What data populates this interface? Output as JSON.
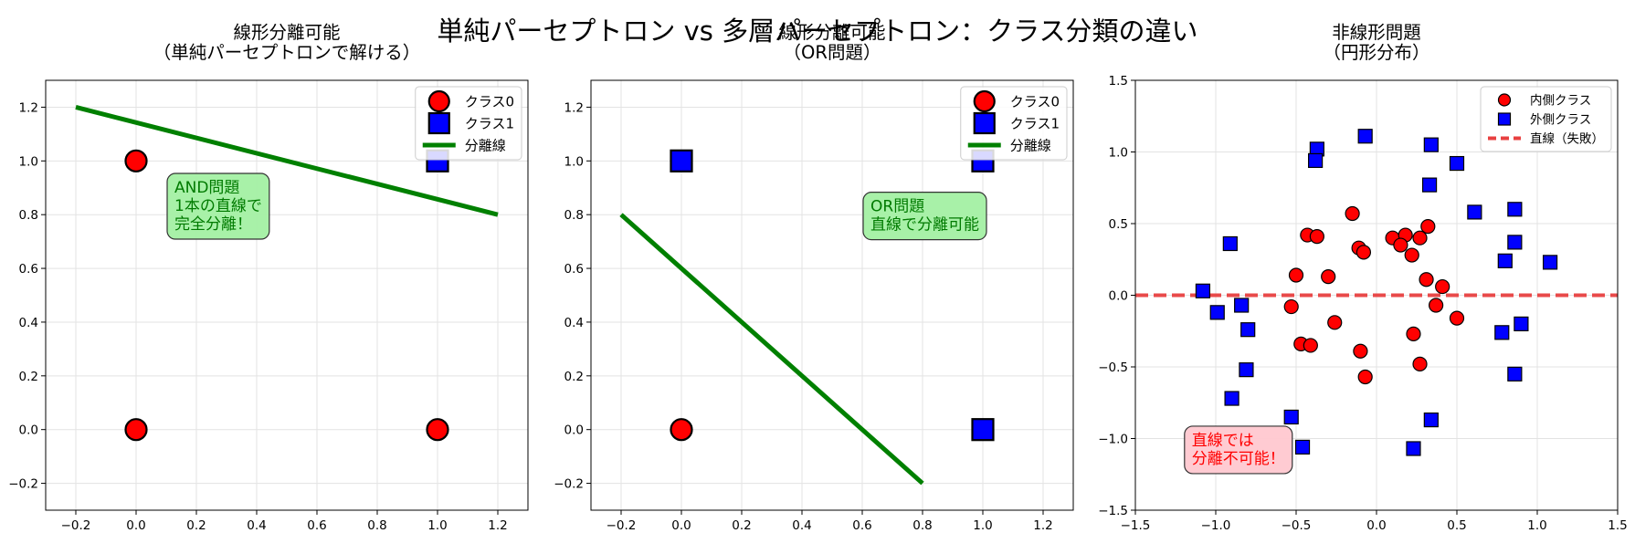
{
  "figure": {
    "suptitle": "単純パーセプトロン vs 多層パーセプトロン：クラス分類の違い"
  },
  "colors": {
    "class0": "#ff0000",
    "class1": "#0000ff",
    "line": "#008000",
    "fail": "#e84040"
  },
  "chart_data": [
    {
      "type": "scatter",
      "title": "線形分離可能\n（単純パーセプトロンで解ける）",
      "xlim": [
        -0.3,
        1.3
      ],
      "ylim": [
        -0.3,
        1.3
      ],
      "xticks": [
        -0.2,
        0.0,
        0.2,
        0.4,
        0.6,
        0.8,
        1.0,
        1.2
      ],
      "yticks": [
        -0.2,
        0.0,
        0.2,
        0.4,
        0.6,
        0.8,
        1.0,
        1.2
      ],
      "tick_decimals": 1,
      "grid": true,
      "legend_position": "top-right",
      "series": [
        {
          "name": "クラス0",
          "marker": "circle",
          "color": "#ff0000",
          "points": [
            [
              0,
              0
            ],
            [
              0,
              1
            ],
            [
              1,
              0
            ]
          ]
        },
        {
          "name": "クラス1",
          "marker": "square",
          "color": "#0000ff",
          "points": [
            [
              1,
              1
            ]
          ]
        }
      ],
      "lines": [
        {
          "name": "分離線",
          "color": "#008000",
          "dash": false,
          "points": [
            [
              -0.2,
              1.2
            ],
            [
              1.2,
              0.8
            ]
          ]
        }
      ],
      "annotation": {
        "text": "AND問題\n1本の直線で\n完全分離！",
        "x": 0.1,
        "y": 0.95,
        "box": "#a3f0a3",
        "color": "#007a00"
      }
    },
    {
      "type": "scatter",
      "title": "線形分離可能\n（OR問題）",
      "xlim": [
        -0.3,
        1.3
      ],
      "ylim": [
        -0.3,
        1.3
      ],
      "xticks": [
        -0.2,
        0.0,
        0.2,
        0.4,
        0.6,
        0.8,
        1.0,
        1.2
      ],
      "yticks": [
        -0.2,
        0.0,
        0.2,
        0.4,
        0.6,
        0.8,
        1.0,
        1.2
      ],
      "tick_decimals": 1,
      "grid": true,
      "legend_position": "top-right",
      "series": [
        {
          "name": "クラス0",
          "marker": "circle",
          "color": "#ff0000",
          "points": [
            [
              0,
              0
            ]
          ]
        },
        {
          "name": "クラス1",
          "marker": "square",
          "color": "#0000ff",
          "points": [
            [
              0,
              1
            ],
            [
              1,
              0
            ],
            [
              1,
              1
            ]
          ]
        }
      ],
      "lines": [
        {
          "name": "分離線",
          "color": "#008000",
          "dash": false,
          "points": [
            [
              -0.2,
              0.8
            ],
            [
              0.8,
              -0.2
            ]
          ]
        }
      ],
      "annotation": {
        "text": "OR問題\n直線で分離可能",
        "x": 0.6,
        "y": 0.88,
        "box": "#a3f0a3",
        "color": "#007a00"
      }
    },
    {
      "type": "scatter",
      "title": "非線形問題\n（円形分布）",
      "xlim": [
        -1.5,
        1.5
      ],
      "ylim": [
        -1.5,
        1.5
      ],
      "xticks": [
        -1.5,
        -1.0,
        -0.5,
        0.0,
        0.5,
        1.0,
        1.5
      ],
      "yticks": [
        -1.5,
        -1.0,
        -0.5,
        0.0,
        0.5,
        1.0,
        1.5
      ],
      "tick_decimals": 1,
      "grid": true,
      "legend_position": "top-right",
      "series": [
        {
          "name": "内側クラス",
          "marker": "circle",
          "color": "#ff0000",
          "points": [
            [
              -0.15,
              0.57
            ],
            [
              -0.43,
              0.42
            ],
            [
              -0.37,
              0.41
            ],
            [
              0.32,
              0.48
            ],
            [
              -0.11,
              0.33
            ],
            [
              -0.08,
              0.3
            ],
            [
              0.1,
              0.4
            ],
            [
              0.18,
              0.42
            ],
            [
              0.15,
              0.35
            ],
            [
              0.27,
              0.4
            ],
            [
              0.22,
              0.28
            ],
            [
              -0.5,
              0.14
            ],
            [
              -0.3,
              0.13
            ],
            [
              0.31,
              0.11
            ],
            [
              0.41,
              0.06
            ],
            [
              -0.53,
              -0.08
            ],
            [
              0.37,
              -0.07
            ],
            [
              -0.26,
              -0.19
            ],
            [
              0.5,
              -0.16
            ],
            [
              0.23,
              -0.27
            ],
            [
              -0.47,
              -0.34
            ],
            [
              -0.41,
              -0.35
            ],
            [
              -0.1,
              -0.39
            ],
            [
              0.27,
              -0.48
            ],
            [
              -0.07,
              -0.57
            ]
          ]
        },
        {
          "name": "外側クラス",
          "marker": "square",
          "color": "#0000ff",
          "points": [
            [
              -0.07,
              1.11
            ],
            [
              -0.37,
              1.02
            ],
            [
              0.34,
              1.05
            ],
            [
              -0.38,
              0.94
            ],
            [
              0.5,
              0.92
            ],
            [
              0.33,
              0.77
            ],
            [
              0.61,
              0.58
            ],
            [
              0.86,
              0.6
            ],
            [
              -0.91,
              0.36
            ],
            [
              0.86,
              0.37
            ],
            [
              0.8,
              0.24
            ],
            [
              1.08,
              0.23
            ],
            [
              -1.08,
              0.03
            ],
            [
              -0.99,
              -0.12
            ],
            [
              -0.84,
              -0.07
            ],
            [
              -0.8,
              -0.24
            ],
            [
              0.9,
              -0.2
            ],
            [
              0.78,
              -0.26
            ],
            [
              -0.81,
              -0.52
            ],
            [
              0.86,
              -0.55
            ],
            [
              -0.9,
              -0.72
            ],
            [
              -0.53,
              -0.85
            ],
            [
              0.34,
              -0.87
            ],
            [
              -0.46,
              -1.06
            ],
            [
              0.23,
              -1.07
            ]
          ]
        }
      ],
      "lines": [
        {
          "name": "直線（失敗）",
          "color": "#e84040",
          "dash": true,
          "points": [
            [
              -1.5,
              0
            ],
            [
              1.5,
              0
            ]
          ]
        }
      ],
      "annotation": {
        "text": "直線では\n分離不可能！",
        "x": -1.2,
        "y": -0.92,
        "box": "#ffc8d0",
        "color": "#ff0000"
      }
    }
  ]
}
